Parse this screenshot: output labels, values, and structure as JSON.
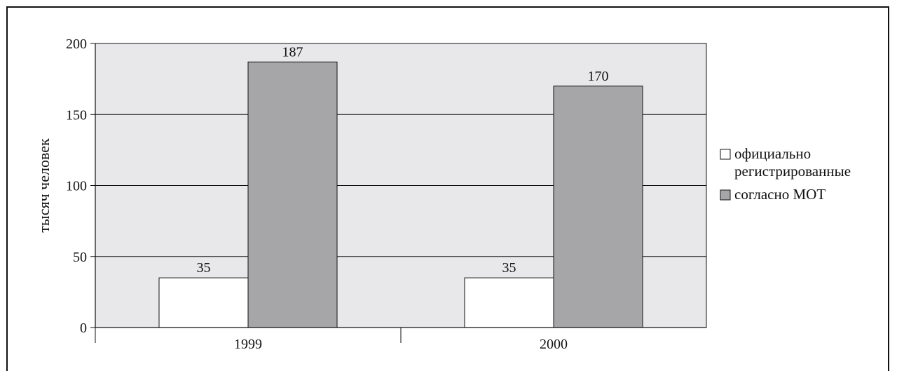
{
  "chart_data": {
    "type": "bar",
    "categories": [
      "1999",
      "2000"
    ],
    "series": [
      {
        "name": "официально регистрированные",
        "values": [
          35,
          35
        ],
        "color": "#ffffff"
      },
      {
        "name": "согласно МОТ",
        "values": [
          187,
          170
        ],
        "color": "#a6a6a8"
      }
    ],
    "ylabel": "тысяч человек",
    "ylim": [
      0,
      200
    ],
    "yticks": [
      0,
      50,
      100,
      150,
      200
    ],
    "data_labels": [
      [
        "35",
        "35"
      ],
      [
        "187",
        "170"
      ]
    ],
    "legend": {
      "placement": "right",
      "entries": [
        {
          "lines": [
            "официально",
            "регистрированные"
          ]
        },
        {
          "lines": [
            "согласно МОТ"
          ]
        }
      ]
    },
    "grid": true,
    "plot_background": "#e8e8ea"
  }
}
